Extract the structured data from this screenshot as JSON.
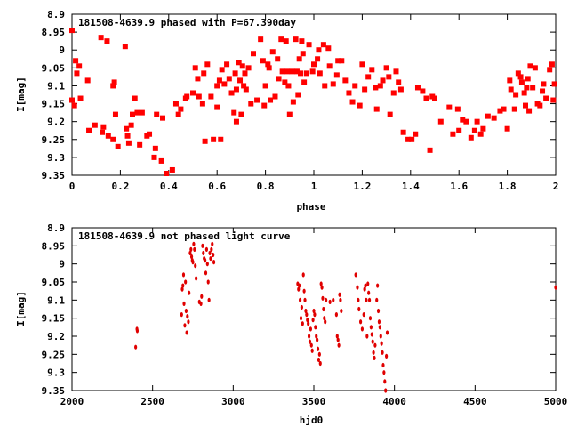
{
  "chart_data": [
    {
      "type": "scatter",
      "title": "181508-4639.9 phased with P=67.390day",
      "xlabel": "phase",
      "ylabel": "I[mag]",
      "xlim": [
        0,
        2
      ],
      "ylim": [
        9.35,
        8.9
      ],
      "y_inverted": true,
      "xticks": [
        "0",
        "0.2",
        "0.4",
        "0.6",
        "0.8",
        "1",
        "1.2",
        "1.4",
        "1.6",
        "1.8",
        "2"
      ],
      "yticks": [
        "8.9",
        "8.95",
        "9",
        "9.05",
        "9.1",
        "9.15",
        "9.2",
        "9.25",
        "9.3",
        "9.35"
      ],
      "color": "#ff0000",
      "points": [
        [
          0.0,
          8.945
        ],
        [
          0.0,
          9.14
        ],
        [
          0.01,
          9.155
        ],
        [
          0.015,
          9.03
        ],
        [
          0.02,
          9.065
        ],
        [
          0.03,
          9.045
        ],
        [
          0.035,
          9.135
        ],
        [
          0.065,
          9.085
        ],
        [
          0.07,
          9.225
        ],
        [
          0.095,
          9.21
        ],
        [
          0.12,
          8.965
        ],
        [
          0.125,
          9.23
        ],
        [
          0.13,
          9.215
        ],
        [
          0.145,
          8.975
        ],
        [
          0.15,
          9.24
        ],
        [
          0.17,
          9.1
        ],
        [
          0.17,
          9.25
        ],
        [
          0.175,
          9.09
        ],
        [
          0.18,
          9.18
        ],
        [
          0.19,
          9.27
        ],
        [
          0.22,
          8.99
        ],
        [
          0.225,
          9.22
        ],
        [
          0.23,
          9.24
        ],
        [
          0.235,
          9.26
        ],
        [
          0.245,
          9.21
        ],
        [
          0.25,
          9.18
        ],
        [
          0.26,
          9.135
        ],
        [
          0.27,
          9.175
        ],
        [
          0.28,
          9.265
        ],
        [
          0.29,
          9.175
        ],
        [
          0.31,
          9.24
        ],
        [
          0.32,
          9.235
        ],
        [
          0.34,
          9.3
        ],
        [
          0.345,
          9.275
        ],
        [
          0.35,
          9.18
        ],
        [
          0.37,
          9.31
        ],
        [
          0.375,
          9.19
        ],
        [
          0.39,
          9.345
        ],
        [
          0.415,
          9.335
        ],
        [
          0.43,
          9.15
        ],
        [
          0.44,
          9.18
        ],
        [
          0.45,
          9.165
        ],
        [
          0.47,
          9.135
        ],
        [
          0.475,
          9.13
        ],
        [
          0.5,
          9.12
        ],
        [
          0.51,
          9.05
        ],
        [
          0.52,
          9.08
        ],
        [
          0.525,
          9.13
        ],
        [
          0.54,
          9.15
        ],
        [
          0.545,
          9.065
        ],
        [
          0.55,
          9.255
        ],
        [
          0.56,
          9.04
        ],
        [
          0.575,
          9.13
        ],
        [
          0.585,
          9.25
        ],
        [
          0.6,
          9.1
        ],
        [
          0.6,
          9.16
        ],
        [
          0.61,
          9.085
        ],
        [
          0.615,
          9.25
        ],
        [
          0.62,
          9.055
        ],
        [
          0.63,
          9.095
        ],
        [
          0.64,
          9.04
        ],
        [
          0.65,
          9.08
        ],
        [
          0.66,
          9.12
        ],
        [
          0.67,
          9.175
        ],
        [
          0.675,
          9.065
        ],
        [
          0.68,
          9.11
        ],
        [
          0.68,
          9.2
        ],
        [
          0.69,
          9.035
        ],
        [
          0.695,
          9.085
        ],
        [
          0.7,
          9.18
        ],
        [
          0.705,
          9.045
        ],
        [
          0.71,
          9.1
        ],
        [
          0.715,
          9.065
        ],
        [
          0.72,
          9.11
        ],
        [
          0.73,
          9.05
        ],
        [
          0.74,
          9.15
        ],
        [
          0.75,
          9.01
        ],
        [
          0.765,
          9.14
        ],
        [
          0.78,
          8.97
        ],
        [
          0.79,
          9.03
        ],
        [
          0.795,
          9.155
        ],
        [
          0.8,
          9.1
        ],
        [
          0.81,
          9.04
        ],
        [
          0.815,
          9.05
        ],
        [
          0.82,
          9.14
        ],
        [
          0.83,
          9.005
        ],
        [
          0.84,
          9.13
        ],
        [
          0.85,
          9.025
        ],
        [
          0.855,
          9.08
        ],
        [
          0.865,
          8.97
        ],
        [
          0.87,
          9.06
        ],
        [
          0.88,
          9.09
        ],
        [
          0.885,
          8.975
        ],
        [
          0.89,
          9.06
        ],
        [
          0.895,
          9.1
        ],
        [
          0.9,
          9.18
        ],
        [
          0.91,
          9.06
        ],
        [
          0.915,
          9.145
        ],
        [
          0.925,
          8.97
        ],
        [
          0.93,
          9.06
        ],
        [
          0.935,
          9.125
        ],
        [
          0.94,
          9.025
        ],
        [
          0.945,
          9.065
        ],
        [
          0.95,
          8.975
        ],
        [
          0.955,
          9.01
        ],
        [
          0.96,
          9.09
        ],
        [
          0.97,
          9.065
        ],
        [
          0.98,
          8.985
        ],
        [
          0.995,
          9.06
        ],
        [
          1.0,
          9.04
        ],
        [
          1.015,
          9.025
        ],
        [
          1.02,
          9.0
        ],
        [
          1.025,
          9.065
        ],
        [
          1.04,
          8.985
        ],
        [
          1.045,
          9.1
        ],
        [
          1.06,
          8.995
        ],
        [
          1.065,
          9.045
        ],
        [
          1.08,
          9.095
        ],
        [
          1.095,
          9.07
        ],
        [
          1.1,
          9.03
        ],
        [
          1.115,
          9.03
        ],
        [
          1.13,
          9.085
        ],
        [
          1.145,
          9.12
        ],
        [
          1.16,
          9.145
        ],
        [
          1.17,
          9.1
        ],
        [
          1.19,
          9.155
        ],
        [
          1.2,
          9.04
        ],
        [
          1.21,
          9.11
        ],
        [
          1.225,
          9.075
        ],
        [
          1.24,
          9.055
        ],
        [
          1.255,
          9.105
        ],
        [
          1.26,
          9.165
        ],
        [
          1.275,
          9.1
        ],
        [
          1.285,
          9.085
        ],
        [
          1.3,
          9.05
        ],
        [
          1.31,
          9.075
        ],
        [
          1.315,
          9.18
        ],
        [
          1.33,
          9.12
        ],
        [
          1.34,
          9.06
        ],
        [
          1.35,
          9.09
        ],
        [
          1.36,
          9.11
        ],
        [
          1.37,
          9.23
        ],
        [
          1.39,
          9.25
        ],
        [
          1.405,
          9.25
        ],
        [
          1.42,
          9.235
        ],
        [
          1.43,
          9.105
        ],
        [
          1.45,
          9.115
        ],
        [
          1.465,
          9.135
        ],
        [
          1.48,
          9.28
        ],
        [
          1.49,
          9.13
        ],
        [
          1.5,
          9.135
        ],
        [
          1.525,
          9.2
        ],
        [
          1.56,
          9.16
        ],
        [
          1.575,
          9.235
        ],
        [
          1.595,
          9.165
        ],
        [
          1.6,
          9.225
        ],
        [
          1.615,
          9.195
        ],
        [
          1.63,
          9.2
        ],
        [
          1.65,
          9.245
        ],
        [
          1.665,
          9.225
        ],
        [
          1.675,
          9.2
        ],
        [
          1.69,
          9.235
        ],
        [
          1.7,
          9.22
        ],
        [
          1.72,
          9.185
        ],
        [
          1.745,
          9.19
        ],
        [
          1.77,
          9.17
        ],
        [
          1.785,
          9.165
        ],
        [
          1.8,
          9.22
        ],
        [
          1.81,
          9.085
        ],
        [
          1.815,
          9.11
        ],
        [
          1.83,
          9.165
        ],
        [
          1.835,
          9.125
        ],
        [
          1.845,
          9.065
        ],
        [
          1.855,
          9.075
        ],
        [
          1.86,
          9.09
        ],
        [
          1.87,
          9.12
        ],
        [
          1.875,
          9.155
        ],
        [
          1.88,
          9.105
        ],
        [
          1.885,
          9.08
        ],
        [
          1.89,
          9.17
        ],
        [
          1.895,
          9.045
        ],
        [
          1.905,
          9.105
        ],
        [
          1.915,
          9.05
        ],
        [
          1.925,
          9.15
        ],
        [
          1.935,
          9.155
        ],
        [
          1.945,
          9.115
        ],
        [
          1.95,
          9.095
        ],
        [
          1.96,
          9.135
        ],
        [
          1.975,
          9.055
        ],
        [
          1.985,
          9.04
        ],
        [
          1.99,
          9.14
        ],
        [
          1.995,
          9.095
        ]
      ]
    },
    {
      "type": "scatter",
      "title": "181508-4639.9 not phased light curve",
      "xlabel": "hjd0",
      "ylabel": "I[mag]",
      "xlim": [
        2000,
        5000
      ],
      "ylim": [
        9.35,
        8.9
      ],
      "y_inverted": true,
      "xticks": [
        "2000",
        "2500",
        "3000",
        "3500",
        "4000",
        "4500",
        "5000"
      ],
      "yticks": [
        "8.9",
        "8.95",
        "9",
        "9.05",
        "9.1",
        "9.15",
        "9.2",
        "9.25",
        "9.3",
        "9.35"
      ],
      "color": "#e00000",
      "points": [
        [
          2395,
          9.23
        ],
        [
          2403,
          9.18
        ],
        [
          2405,
          9.185
        ],
        [
          2680,
          9.14
        ],
        [
          2684,
          9.07
        ],
        [
          2688,
          9.06
        ],
        [
          2692,
          9.03
        ],
        [
          2695,
          9.11
        ],
        [
          2700,
          9.17
        ],
        [
          2704,
          9.05
        ],
        [
          2708,
          9.13
        ],
        [
          2712,
          9.19
        ],
        [
          2716,
          9.145
        ],
        [
          2722,
          9.16
        ],
        [
          2726,
          9.08
        ],
        [
          2733,
          8.97
        ],
        [
          2738,
          8.96
        ],
        [
          2742,
          8.98
        ],
        [
          2746,
          8.99
        ],
        [
          2750,
          8.995
        ],
        [
          2755,
          8.945
        ],
        [
          2760,
          8.96
        ],
        [
          2765,
          9.005
        ],
        [
          2770,
          9.04
        ],
        [
          2790,
          9.105
        ],
        [
          2800,
          9.11
        ],
        [
          2804,
          9.09
        ],
        [
          2810,
          8.95
        ],
        [
          2815,
          8.97
        ],
        [
          2820,
          8.985
        ],
        [
          2825,
          8.99
        ],
        [
          2830,
          9.025
        ],
        [
          2835,
          8.96
        ],
        [
          2840,
          9.0
        ],
        [
          2845,
          9.05
        ],
        [
          2850,
          9.1
        ],
        [
          2855,
          8.97
        ],
        [
          2860,
          8.985
        ],
        [
          2865,
          8.96
        ],
        [
          2870,
          8.945
        ],
        [
          2875,
          8.975
        ],
        [
          2880,
          8.995
        ],
        [
          3400,
          9.055
        ],
        [
          3405,
          9.07
        ],
        [
          3410,
          9.06
        ],
        [
          3415,
          9.1
        ],
        [
          3420,
          9.15
        ],
        [
          3425,
          9.12
        ],
        [
          3430,
          9.165
        ],
        [
          3435,
          9.03
        ],
        [
          3440,
          9.075
        ],
        [
          3445,
          9.1
        ],
        [
          3450,
          9.13
        ],
        [
          3455,
          9.14
        ],
        [
          3460,
          9.155
        ],
        [
          3465,
          9.165
        ],
        [
          3470,
          9.2
        ],
        [
          3475,
          9.215
        ],
        [
          3480,
          9.18
        ],
        [
          3485,
          9.225
        ],
        [
          3490,
          9.24
        ],
        [
          3495,
          9.155
        ],
        [
          3500,
          9.13
        ],
        [
          3505,
          9.14
        ],
        [
          3510,
          9.175
        ],
        [
          3515,
          9.2
        ],
        [
          3520,
          9.21
        ],
        [
          3525,
          9.235
        ],
        [
          3530,
          9.265
        ],
        [
          3535,
          9.25
        ],
        [
          3540,
          9.275
        ],
        [
          3545,
          9.055
        ],
        [
          3550,
          9.065
        ],
        [
          3555,
          9.095
        ],
        [
          3560,
          9.125
        ],
        [
          3565,
          9.15
        ],
        [
          3570,
          9.16
        ],
        [
          3575,
          9.1
        ],
        [
          3600,
          9.105
        ],
        [
          3620,
          9.1
        ],
        [
          3640,
          9.14
        ],
        [
          3645,
          9.2
        ],
        [
          3650,
          9.21
        ],
        [
          3655,
          9.225
        ],
        [
          3660,
          9.085
        ],
        [
          3665,
          9.1
        ],
        [
          3670,
          9.13
        ],
        [
          3760,
          9.03
        ],
        [
          3770,
          9.065
        ],
        [
          3775,
          9.1
        ],
        [
          3780,
          9.125
        ],
        [
          3790,
          9.16
        ],
        [
          3800,
          9.18
        ],
        [
          3810,
          9.14
        ],
        [
          3815,
          9.07
        ],
        [
          3820,
          9.06
        ],
        [
          3825,
          9.1
        ],
        [
          3830,
          9.2
        ],
        [
          3835,
          9.055
        ],
        [
          3840,
          9.08
        ],
        [
          3845,
          9.1
        ],
        [
          3850,
          9.15
        ],
        [
          3855,
          9.175
        ],
        [
          3860,
          9.195
        ],
        [
          3865,
          9.215
        ],
        [
          3870,
          9.245
        ],
        [
          3875,
          9.26
        ],
        [
          3880,
          9.225
        ],
        [
          3890,
          9.1
        ],
        [
          3895,
          9.06
        ],
        [
          3900,
          9.13
        ],
        [
          3905,
          9.16
        ],
        [
          3910,
          9.175
        ],
        [
          3915,
          9.2
        ],
        [
          3920,
          9.22
        ],
        [
          3925,
          9.245
        ],
        [
          3930,
          9.28
        ],
        [
          3935,
          9.3
        ],
        [
          3940,
          9.325
        ],
        [
          3945,
          9.35
        ],
        [
          3950,
          9.255
        ],
        [
          3955,
          9.19
        ],
        [
          5000,
          9.065
        ]
      ]
    }
  ]
}
